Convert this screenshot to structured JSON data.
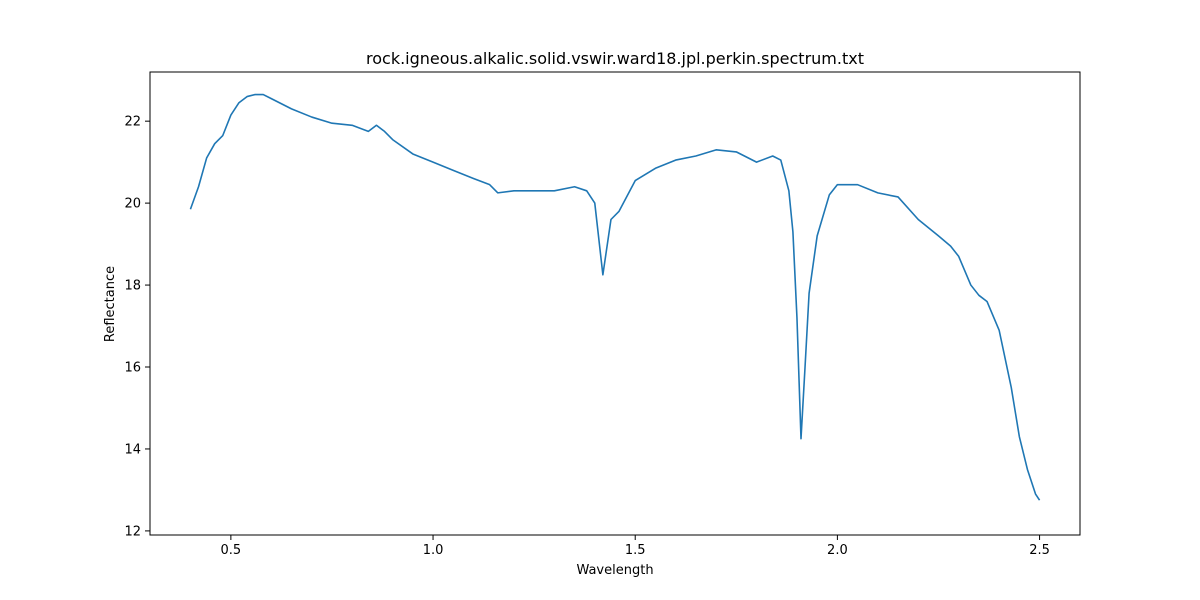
{
  "chart_data": {
    "type": "line",
    "title": "rock.igneous.alkalic.solid.vswir.ward18.jpl.perkin.spectrum.txt",
    "xlabel": "Wavelength",
    "ylabel": "Reflectance",
    "xlim": [
      0.3,
      2.6
    ],
    "ylim": [
      11.9,
      23.2
    ],
    "xticks": [
      0.5,
      1.0,
      1.5,
      2.0,
      2.5
    ],
    "xtick_labels": [
      "0.5",
      "1.0",
      "1.5",
      "2.0",
      "2.5"
    ],
    "yticks": [
      12,
      14,
      16,
      18,
      20,
      22
    ],
    "ytick_labels": [
      "12",
      "14",
      "16",
      "18",
      "20",
      "22"
    ],
    "grid": false,
    "line_color": "#1f77b4",
    "series": [
      {
        "x": [
          0.4,
          0.42,
          0.44,
          0.46,
          0.48,
          0.5,
          0.52,
          0.54,
          0.56,
          0.58,
          0.6,
          0.65,
          0.7,
          0.75,
          0.8,
          0.84,
          0.86,
          0.88,
          0.9,
          0.95,
          1.0,
          1.05,
          1.1,
          1.14,
          1.16,
          1.2,
          1.25,
          1.3,
          1.35,
          1.38,
          1.4,
          1.42,
          1.44,
          1.46,
          1.5,
          1.55,
          1.6,
          1.65,
          1.7,
          1.75,
          1.8,
          1.84,
          1.86,
          1.88,
          1.89,
          1.9,
          1.91,
          1.92,
          1.93,
          1.95,
          1.98,
          2.0,
          2.05,
          2.1,
          2.15,
          2.2,
          2.25,
          2.28,
          2.3,
          2.33,
          2.35,
          2.37,
          2.4,
          2.43,
          2.45,
          2.47,
          2.49,
          2.5
        ],
        "y": [
          19.85,
          20.4,
          21.1,
          21.45,
          21.65,
          22.15,
          22.45,
          22.6,
          22.65,
          22.65,
          22.55,
          22.3,
          22.1,
          21.95,
          21.9,
          21.75,
          21.9,
          21.75,
          21.55,
          21.2,
          21.0,
          20.8,
          20.6,
          20.45,
          20.25,
          20.3,
          20.3,
          20.3,
          20.4,
          20.3,
          20.0,
          18.25,
          19.6,
          19.8,
          20.55,
          20.85,
          21.05,
          21.15,
          21.3,
          21.25,
          21.0,
          21.15,
          21.05,
          20.3,
          19.3,
          17.2,
          14.25,
          16.0,
          17.8,
          19.2,
          20.2,
          20.45,
          20.45,
          20.25,
          20.15,
          19.6,
          19.2,
          18.95,
          18.7,
          18.0,
          17.75,
          17.6,
          16.9,
          15.5,
          14.3,
          13.5,
          12.9,
          12.75
        ]
      }
    ]
  }
}
